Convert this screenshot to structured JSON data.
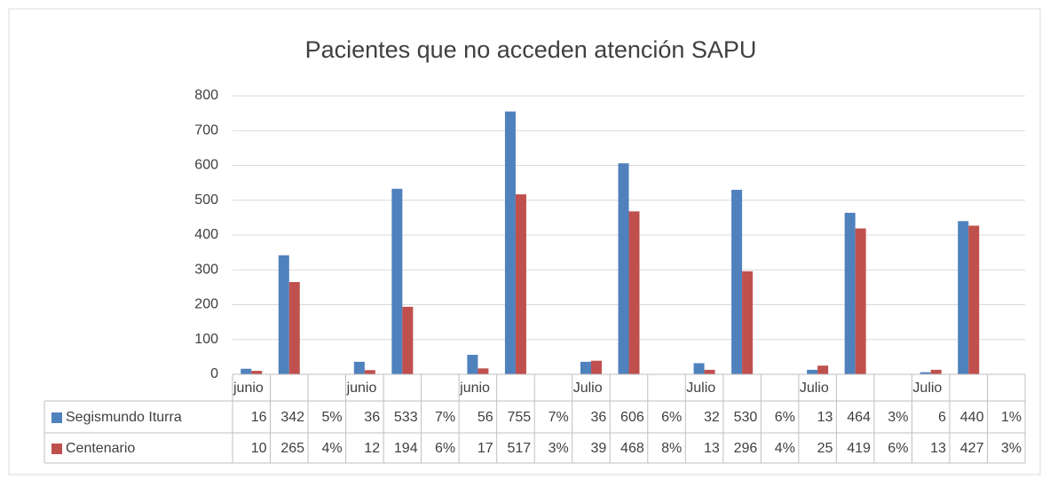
{
  "chart_data": {
    "type": "bar",
    "title": "Pacientes que no acceden atención SAPU",
    "categories": [
      "junio",
      null,
      null,
      "junio",
      null,
      null,
      "junio",
      null,
      null,
      "Julio",
      null,
      null,
      "Julio",
      null,
      null,
      "Julio",
      null,
      null,
      "Julio",
      null,
      null
    ],
    "series": [
      {
        "name": "Segismundo Iturra",
        "color": "#4f81bd",
        "values": [
          16,
          342,
          0.05,
          36,
          533,
          0.07,
          56,
          755,
          0.07,
          36,
          606,
          0.06,
          32,
          530,
          0.06,
          13,
          464,
          0.03,
          6,
          440,
          0.01
        ],
        "value_labels": [
          null,
          null,
          "5%",
          null,
          null,
          "7%",
          null,
          null,
          "7%",
          null,
          null,
          "6%",
          null,
          null,
          "6%",
          null,
          null,
          "3%",
          null,
          null,
          "1%"
        ]
      },
      {
        "name": "Centenario",
        "color": "#c0504d",
        "values": [
          10,
          265,
          0.04,
          12,
          194,
          0.06,
          17,
          517,
          0.03,
          39,
          468,
          0.08,
          13,
          296,
          0.04,
          25,
          419,
          0.06,
          13,
          427,
          0.03
        ],
        "value_labels": [
          null,
          null,
          "4%",
          null,
          null,
          "6%",
          null,
          null,
          "3%",
          null,
          null,
          "8%",
          null,
          null,
          "4%",
          null,
          null,
          "6%",
          null,
          null,
          "3%"
        ]
      }
    ],
    "ylim": [
      0,
      800
    ],
    "yticks": [
      0,
      100,
      200,
      300,
      400,
      500,
      600,
      700,
      800
    ],
    "grid": true,
    "data_table": true
  }
}
